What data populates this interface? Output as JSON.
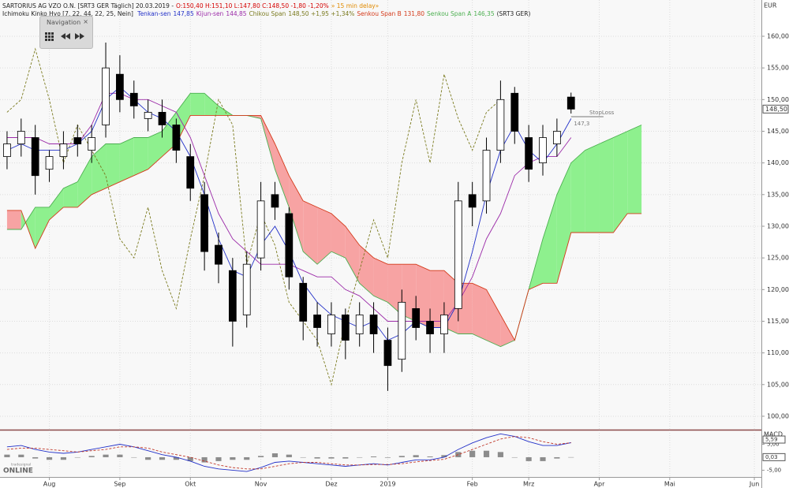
{
  "ui": {
    "currency": "EUR",
    "navigation": "Navigation",
    "close_icon": "×",
    "logo": "ONLINE",
    "logo_sub": "tradesignal"
  },
  "header": {
    "title": "SARTORIUS AG VZO O.N. [SRT3 GER Täglich] 20.03.2019 -",
    "quote": "O:150,40 H:151,10 L:147,80 C:148,50 -1,80 -1,20%",
    "delay": "» 15 min delay»",
    "indicator": "Ichimoku Kinko Hyo [7, 22, 44, 22, 25, Nein]",
    "symbol": "(SRT3 GER)"
  },
  "chart_data": [
    {
      "type": "ichimoku",
      "categories": [
        null,
        null,
        null,
        "Aug",
        null,
        null,
        null,
        null,
        "Sep",
        null,
        null,
        null,
        null,
        "Okt",
        null,
        null,
        null,
        null,
        "Nov",
        null,
        null,
        null,
        null,
        "Dez",
        null,
        null,
        null,
        "2019",
        null,
        null,
        null,
        null,
        null,
        "Feb",
        null,
        null,
        null,
        "Mrz",
        null,
        null,
        null,
        null,
        "Apr",
        null,
        null,
        null,
        null,
        "Mai",
        null,
        null,
        null,
        null,
        null,
        "Jun"
      ],
      "ylim": [
        97.88,
        164.48
      ],
      "yticks": [
        {
          "value": 100,
          "label": "100,00"
        },
        {
          "value": 105,
          "label": "105,00"
        },
        {
          "value": 110,
          "label": "110,00"
        },
        {
          "value": 115,
          "label": "115,00"
        },
        {
          "value": 120,
          "label": "120,00"
        },
        {
          "value": 125,
          "label": "125,00"
        },
        {
          "value": 130,
          "label": "130,00"
        },
        {
          "value": 135,
          "label": "135,00"
        },
        {
          "value": 140,
          "label": "140,00"
        },
        {
          "value": 145,
          "label": "145,00"
        },
        {
          "value": 150,
          "label": "150,00"
        },
        {
          "value": 155,
          "label": "155,00"
        },
        {
          "value": 160,
          "label": "160,00"
        }
      ],
      "grid": true,
      "ohlc": {
        "open": [
          141,
          143,
          144,
          139,
          141,
          144,
          142,
          146,
          154,
          151,
          147,
          148,
          146,
          141,
          135,
          127,
          123,
          116,
          125,
          135,
          132,
          121,
          116,
          113,
          116,
          113,
          116,
          112,
          109,
          117,
          115,
          113,
          117,
          135,
          134,
          142,
          151,
          144,
          140,
          143,
          150.4,
          null,
          null,
          null,
          null,
          null,
          null,
          null,
          null,
          null,
          null,
          null,
          null,
          null
        ],
        "high": [
          145,
          147,
          146,
          142,
          145,
          146,
          146,
          159,
          157,
          153,
          150,
          150,
          147,
          143,
          137,
          129,
          125,
          126,
          137,
          137,
          133,
          122,
          118,
          118,
          117,
          118,
          118,
          114,
          120,
          119,
          117,
          118,
          137,
          137,
          144,
          153,
          152,
          146,
          146,
          147,
          151.1,
          null,
          null,
          null,
          null,
          null,
          null,
          null,
          null,
          null,
          null,
          null,
          null,
          null
        ],
        "low": [
          139,
          141,
          135,
          137,
          139,
          141,
          140,
          144,
          148,
          147,
          145,
          144,
          140,
          134,
          123,
          121,
          111,
          114,
          123,
          131,
          120,
          112,
          111,
          111,
          109,
          111,
          110,
          104,
          107,
          112,
          110,
          110,
          115,
          130,
          132,
          140,
          143,
          137,
          138,
          141,
          147.8,
          null,
          null,
          null,
          null,
          null,
          null,
          null,
          null,
          null,
          null,
          null,
          null,
          null
        ],
        "close": [
          143,
          145,
          138,
          141,
          143,
          143,
          144,
          155,
          150,
          149,
          148,
          146,
          142,
          136,
          126,
          124,
          115,
          124,
          134,
          133,
          122,
          115,
          114,
          116,
          112,
          116,
          113,
          108,
          118,
          114,
          113,
          116,
          134,
          133,
          142,
          150,
          145,
          139,
          144,
          145,
          148.5,
          null,
          null,
          null,
          null,
          null,
          null,
          null,
          null,
          null,
          null,
          null,
          null,
          null
        ],
        "value_labels": [
          null,
          null,
          null,
          null,
          null,
          null,
          null,
          null,
          null,
          null,
          null,
          null,
          null,
          null,
          null,
          null,
          null,
          null,
          null,
          null,
          null,
          null,
          null,
          null,
          null,
          null,
          null,
          null,
          null,
          null,
          null,
          null,
          null,
          null,
          null,
          null,
          null,
          null,
          null,
          null,
          "148,50",
          null,
          null,
          null,
          null,
          null,
          null,
          null,
          null,
          null,
          null,
          null,
          null,
          null
        ]
      },
      "cloud_colors": {
        "up": "#8ef08e",
        "down": "#f7a3a3"
      },
      "series": [
        {
          "name": "Senkou Span A",
          "legend_value": "146,35",
          "color": "#4caf50",
          "span": "A",
          "values": [
            129.5,
            129.5,
            133,
            133,
            136,
            137,
            141,
            143,
            143,
            144,
            144,
            145,
            148,
            151,
            151,
            149,
            147.5,
            147.5,
            147,
            139,
            133,
            126,
            124,
            126,
            125,
            121,
            119,
            118,
            116,
            115,
            114,
            114,
            113,
            113,
            112,
            111,
            112,
            120,
            128,
            135,
            140,
            142,
            143,
            144,
            145,
            146,
            null,
            null,
            null,
            null,
            null,
            null,
            null,
            null
          ]
        },
        {
          "name": "Senkou Span B",
          "legend_value": "131,80",
          "color": "#d43a1a",
          "span": "B",
          "values": [
            132.5,
            132.5,
            126.5,
            131,
            133,
            133,
            135,
            136,
            137,
            138,
            139,
            141,
            143,
            147.5,
            147.5,
            147.5,
            147.5,
            147.5,
            147.5,
            143,
            138,
            134,
            133,
            132,
            130,
            127,
            125,
            124,
            124,
            124,
            123,
            123,
            121,
            121,
            120,
            116,
            112,
            120,
            121,
            121,
            129,
            129,
            129,
            129,
            132,
            132,
            null,
            null,
            null,
            null,
            null,
            null,
            null,
            null
          ]
        },
        {
          "name": "Chikou Span",
          "legend_value": "148,50 +1,95 +1,34%",
          "color": "#7a7a1e",
          "dashed": true,
          "values": [
            148,
            150,
            158,
            150,
            140,
            146,
            142,
            138,
            128,
            125,
            133,
            123,
            117,
            128,
            138,
            150,
            146,
            124,
            132,
            127,
            118,
            115,
            112,
            105,
            115,
            123,
            131,
            125,
            140,
            150,
            140,
            154,
            147,
            142,
            148,
            150,
            null,
            null,
            null,
            null,
            null,
            null,
            null,
            null,
            null,
            null,
            null,
            null,
            null,
            null,
            null,
            null,
            null,
            null
          ]
        },
        {
          "name": "Kijun-sen",
          "legend_value": "144,85",
          "color": "#9b2aa8",
          "values": [
            144,
            144,
            144,
            143,
            143,
            143,
            146,
            151,
            151,
            150,
            150,
            149,
            148,
            144,
            138,
            132,
            128,
            126,
            124,
            124,
            124,
            123,
            122,
            122,
            120,
            119,
            117,
            115,
            115,
            115,
            115,
            115,
            118,
            122,
            128,
            132,
            138,
            140,
            141,
            141,
            144,
            null,
            null,
            null,
            null,
            null,
            null,
            null,
            null,
            null,
            null,
            null,
            null,
            null
          ]
        },
        {
          "name": "Tenkan-sen",
          "legend_value": "147,85",
          "color": "#2230c8",
          "values": [
            142,
            143,
            142,
            142,
            142,
            143,
            145,
            150,
            152,
            150,
            148,
            147,
            145,
            141,
            135,
            128,
            123,
            122,
            127,
            130,
            126,
            121,
            118,
            116,
            115,
            114,
            115,
            112,
            113,
            115,
            114,
            114,
            118,
            126,
            135,
            142,
            146,
            142,
            140,
            143,
            147,
            null,
            null,
            null,
            null,
            null,
            null,
            null,
            null,
            null,
            null,
            null,
            null,
            null
          ]
        }
      ],
      "annotations": [
        {
          "label": "StopLoss",
          "value": 147.3,
          "value_label": "147,3"
        }
      ]
    },
    {
      "type": "macd",
      "title": "MACD",
      "ylim": [
        -7.6,
        9.7
      ],
      "yticks": [
        {
          "value": -5,
          "label": "-5,00"
        },
        {
          "value": 5,
          "label": "5,00"
        }
      ],
      "series": [
        {
          "color": "#2230c8",
          "values": [
            4,
            4.5,
            3,
            2,
            1.5,
            2,
            3,
            4,
            5,
            4,
            2.5,
            1,
            0,
            -1.5,
            -3.5,
            -4.5,
            -5,
            -5.5,
            -4,
            -2,
            -1.5,
            -2,
            -2.5,
            -3,
            -3.5,
            -3,
            -2.5,
            -3,
            -2,
            -1,
            -1,
            0,
            3,
            5.5,
            7.5,
            9,
            8,
            6,
            4.5,
            4.5,
            5.59
          ],
          "value_labels": [
            null,
            null,
            null,
            null,
            null,
            null,
            null,
            null,
            null,
            null,
            null,
            null,
            null,
            null,
            null,
            null,
            null,
            null,
            null,
            null,
            null,
            null,
            null,
            null,
            null,
            null,
            null,
            null,
            null,
            null,
            null,
            null,
            null,
            null,
            null,
            null,
            null,
            null,
            null,
            null,
            "5,59"
          ]
        },
        {
          "color": "#c0392b",
          "dashed": true,
          "values": [
            3,
            3.5,
            3.5,
            3,
            2.5,
            2,
            2.5,
            3,
            4,
            4,
            3.5,
            2,
            1,
            0,
            -1.5,
            -3,
            -4,
            -4.5,
            -4.5,
            -3.5,
            -2.5,
            -2,
            -2,
            -2.5,
            -3,
            -3,
            -2.8,
            -2.8,
            -2.5,
            -1.8,
            -1.3,
            -0.8,
            1,
            3,
            5,
            7,
            8,
            7.5,
            6,
            5,
            5.56
          ]
        }
      ],
      "histogram": {
        "color": "#8c8c8c",
        "values": [
          1,
          1,
          -0.5,
          -1,
          -1,
          0,
          0.5,
          1,
          1,
          0,
          -1,
          -1,
          -1,
          -1.5,
          -2,
          -1.5,
          -1,
          -1,
          0.5,
          1.5,
          1,
          0,
          -0.5,
          -0.5,
          -0.5,
          0,
          0.3,
          -0.2,
          0.5,
          0.8,
          0.3,
          0.8,
          2,
          2.5,
          2.5,
          2,
          0,
          -1.5,
          -1.5,
          -0.5,
          0.03
        ],
        "value_labels": [
          null,
          null,
          null,
          null,
          null,
          null,
          null,
          null,
          null,
          null,
          null,
          null,
          null,
          null,
          null,
          null,
          null,
          null,
          null,
          null,
          null,
          null,
          null,
          null,
          null,
          null,
          null,
          null,
          null,
          null,
          null,
          null,
          null,
          null,
          null,
          null,
          null,
          null,
          null,
          null,
          "0,03"
        ]
      }
    }
  ]
}
